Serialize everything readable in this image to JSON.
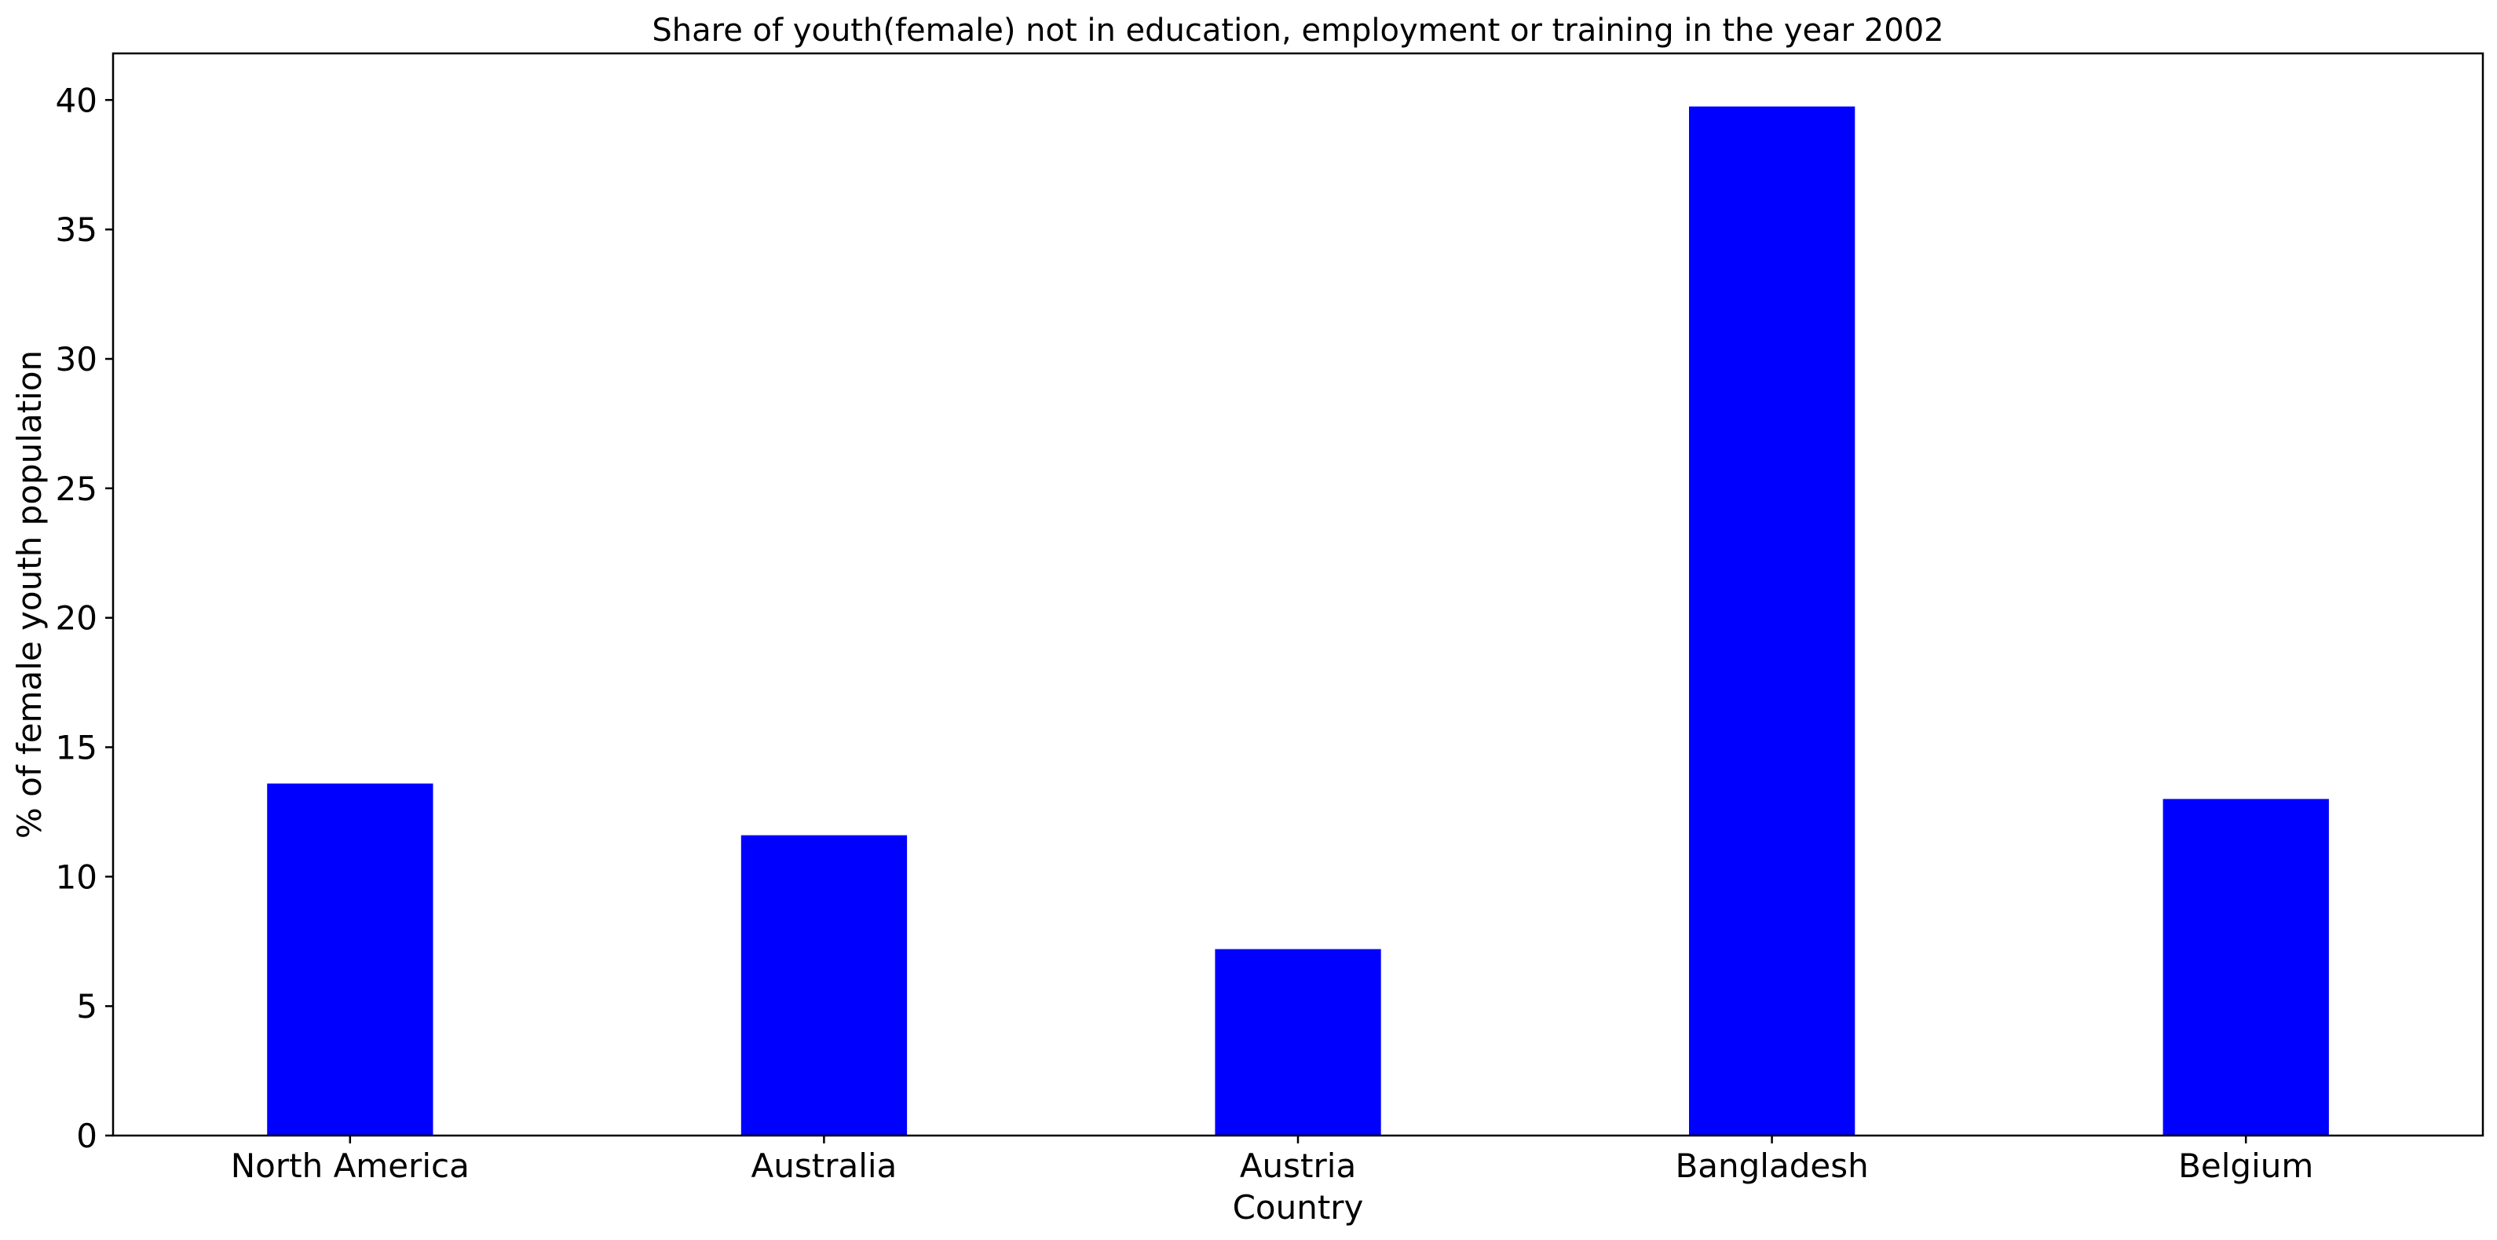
{
  "colors": {
    "bar": "#0000ff",
    "axis": "#000000",
    "background": "#ffffff"
  },
  "chart_data": {
    "type": "bar",
    "title": "Share of youth(female) not in education, employment or training in the year 2002",
    "xlabel": "Country",
    "ylabel": "% of female youth population",
    "categories": [
      "North America",
      "Australia",
      "Austria",
      "Bangladesh",
      "Belgium"
    ],
    "values": [
      13.6,
      11.6,
      7.2,
      39.75,
      13.0
    ],
    "ylim": [
      0,
      41.8
    ],
    "yticks": [
      0,
      5,
      10,
      15,
      20,
      25,
      30,
      35,
      40
    ],
    "grid": false,
    "legend": "none"
  }
}
